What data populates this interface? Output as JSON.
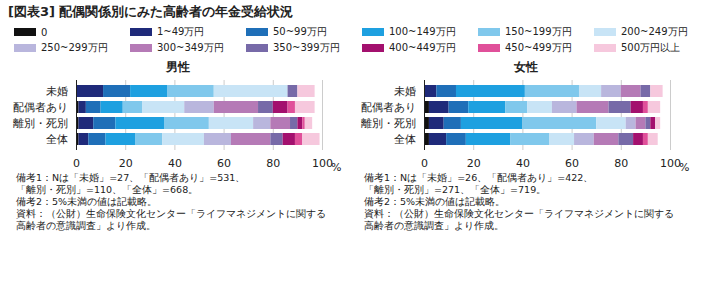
{
  "title": "[図表3] 配偶関係別にみた高齢者の年金受給状況",
  "chart_data": [
    {
      "type": "bar",
      "title": "男性",
      "orientation": "horizontal",
      "stacked": true,
      "grid": true,
      "legend": "top",
      "categories": [
        "未婚",
        "配偶者あり",
        "離別・死別",
        "全体"
      ],
      "xlim": [
        0,
        100
      ],
      "xticks": [
        0,
        20,
        40,
        60,
        80,
        100
      ],
      "xlabel": "%",
      "series": [
        {
          "name": "0",
          "color": "#111111",
          "values": [
            0,
            1,
            1,
            1
          ]
        },
        {
          "name": "1~49万円",
          "color": "#1f2a7a",
          "values": [
            11,
            3,
            6,
            4
          ]
        },
        {
          "name": "50~99万円",
          "color": "#1f6fb8",
          "values": [
            11,
            6,
            9,
            7
          ]
        },
        {
          "name": "100~149万円",
          "color": "#1ea0e0",
          "values": [
            15,
            9,
            20,
            12
          ]
        },
        {
          "name": "150~199万円",
          "color": "#80c8ec",
          "values": [
            19,
            8,
            18,
            11
          ]
        },
        {
          "name": "200~249万円",
          "color": "#c8e4f6",
          "values": [
            30,
            17,
            18,
            17
          ]
        },
        {
          "name": "250~299万円",
          "color": "#b9b6dd",
          "values": [
            0,
            12,
            7,
            11
          ]
        },
        {
          "name": "300~349万円",
          "color": "#b57ab6",
          "values": [
            0,
            18,
            8,
            16
          ]
        },
        {
          "name": "350~399万円",
          "color": "#776aa8",
          "values": [
            4,
            6,
            3,
            5
          ]
        },
        {
          "name": "400~449万円",
          "color": "#a3106e",
          "values": [
            0,
            6,
            2,
            5
          ]
        },
        {
          "name": "450~499万円",
          "color": "#e0509a",
          "values": [
            0,
            3,
            1,
            3
          ]
        },
        {
          "name": "500万円以上",
          "color": "#f6c8dd",
          "values": [
            7,
            8,
            3,
            7
          ]
        }
      ],
      "annotations": [
        "備考1：Nは「未婚」=27、「配偶者あり」=531、",
        "「離別・死別」=110、「全体」=668。",
        "備考2：5%未満の値は記載略。",
        "資料：（公財）生命保険文化センター「ライフマネジメントに関する",
        "高齢者の意識調査」より作成。"
      ]
    },
    {
      "type": "bar",
      "title": "女性",
      "orientation": "horizontal",
      "stacked": true,
      "grid": true,
      "legend": "top",
      "categories": [
        "未婚",
        "配偶者あり",
        "離別・死別",
        "全体"
      ],
      "xlim": [
        0,
        100
      ],
      "xticks": [
        0,
        20,
        40,
        60,
        80,
        100
      ],
      "xlabel": "%",
      "series": [
        {
          "name": "0",
          "color": "#111111",
          "values": [
            0,
            2,
            2,
            2
          ]
        },
        {
          "name": "1~49万円",
          "color": "#1f2a7a",
          "values": [
            5,
            8,
            6,
            7
          ]
        },
        {
          "name": "50~99万円",
          "color": "#1f6fb8",
          "values": [
            8,
            8,
            7,
            8
          ]
        },
        {
          "name": "100~149万円",
          "color": "#1ea0e0",
          "values": [
            28,
            15,
            25,
            18
          ]
        },
        {
          "name": "150~199万円",
          "color": "#80c8ec",
          "values": [
            22,
            9,
            30,
            16
          ]
        },
        {
          "name": "200~249万円",
          "color": "#c8e4f6",
          "values": [
            9,
            10,
            12,
            10
          ]
        },
        {
          "name": "250~299万円",
          "color": "#b9b6dd",
          "values": [
            8,
            10,
            4,
            8
          ]
        },
        {
          "name": "300~349万円",
          "color": "#b57ab6",
          "values": [
            8,
            13,
            4,
            10
          ]
        },
        {
          "name": "350~399万円",
          "color": "#776aa8",
          "values": [
            4,
            9,
            2,
            6
          ]
        },
        {
          "name": "400~449万円",
          "color": "#a3106e",
          "values": [
            0,
            5,
            2,
            4
          ]
        },
        {
          "name": "450~499万円",
          "color": "#e0509a",
          "values": [
            0,
            2,
            0,
            2
          ]
        },
        {
          "name": "500万円以上",
          "color": "#f6c8dd",
          "values": [
            5,
            5,
            2,
            4
          ]
        }
      ],
      "annotations": [
        "備考1：Nは「未婚」=26、「配偶者あり」=422、",
        "「離別・死別」=271、「全体」=719。",
        "備考2：5%未満の値は記載略。",
        "資料：（公財）生命保険文化センター「ライフマネジメントに関する",
        "高齢者の意識調査」より作成。"
      ]
    }
  ]
}
